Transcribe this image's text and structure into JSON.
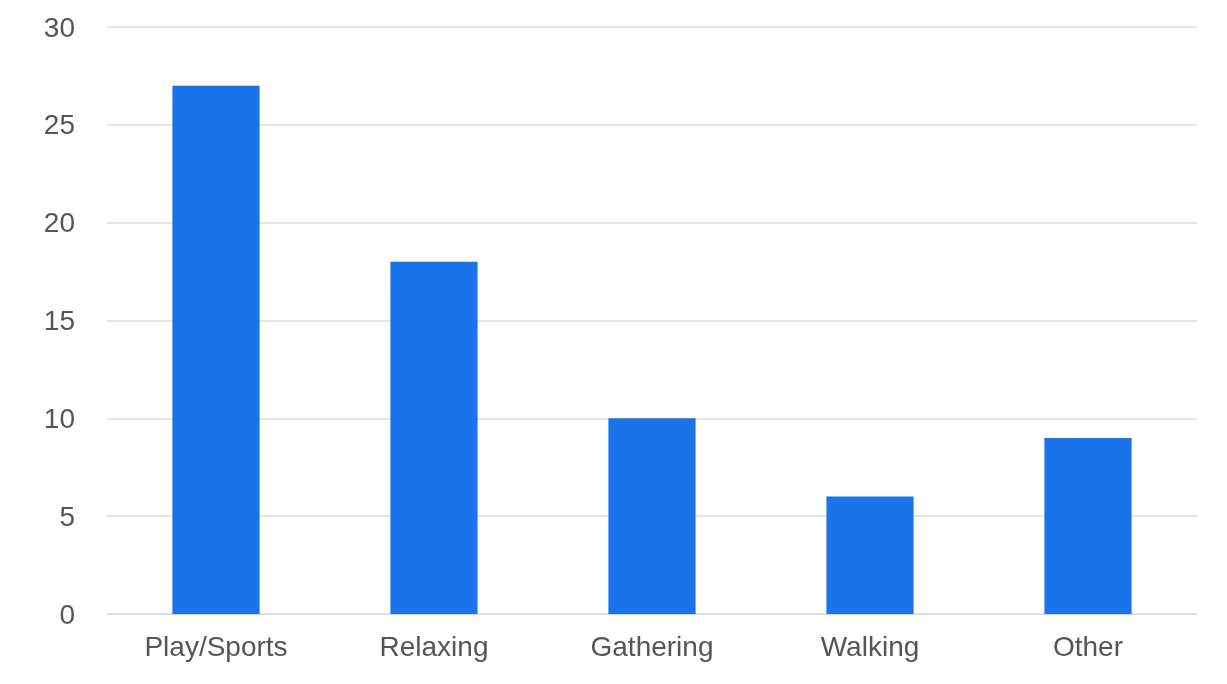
{
  "chart_data": {
    "type": "bar",
    "categories": [
      "Play/Sports",
      "Relaxing",
      "Gathering",
      "Walking",
      "Other"
    ],
    "values": [
      27,
      18,
      10,
      6,
      9
    ],
    "color": "#1a73e8",
    "ylim": [
      0,
      30
    ],
    "yticks": [
      0,
      5,
      10,
      15,
      20,
      25,
      30
    ],
    "grid": "y"
  }
}
